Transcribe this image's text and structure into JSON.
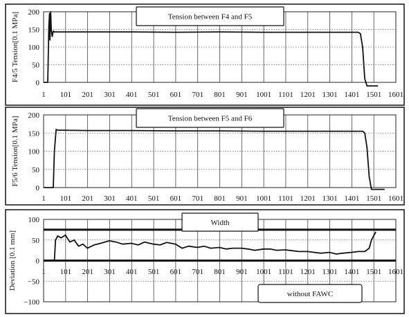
{
  "chart_data": [
    {
      "type": "line",
      "title": "Tension between F4 and F5",
      "ylabel": "F4/5 Tension[0.1 MPa]",
      "xlim": [
        1,
        1601
      ],
      "ylim": [
        0,
        200
      ],
      "x_ticks": [
        "1",
        "101",
        "201",
        "301",
        "401",
        "501",
        "601",
        "701",
        "801",
        "901",
        "1001",
        "1101",
        "1201",
        "1301",
        "1401",
        "1501",
        "1601"
      ],
      "y_ticks": [
        "0",
        "50",
        "100",
        "150",
        "200"
      ],
      "grid": true,
      "series": [
        {
          "x": [
            1,
            20,
            25,
            28,
            30,
            33,
            36,
            40,
            45,
            50,
            200,
            400,
            600,
            800,
            1000,
            1200,
            1350,
            1430,
            1440,
            1450,
            1460,
            1470,
            1500,
            1520
          ],
          "values": [
            0,
            0,
            160,
            195,
            120,
            200,
            150,
            130,
            145,
            143,
            143,
            143,
            142,
            143,
            142,
            142,
            142,
            142,
            138,
            100,
            10,
            -10,
            -10,
            -10
          ]
        }
      ]
    },
    {
      "type": "line",
      "title": "Tension between F5 and  F6",
      "ylabel": "F5/6 Tension[0.1 MPa]",
      "xlim": [
        1,
        1601
      ],
      "ylim": [
        0,
        200
      ],
      "x_ticks": [
        "1",
        "101",
        "201",
        "301",
        "401",
        "501",
        "601",
        "701",
        "801",
        "901",
        "1001",
        "1101",
        "1201",
        "1301",
        "1401",
        "1501",
        "1601"
      ],
      "y_ticks": [
        "0",
        "50",
        "100",
        "150",
        "200"
      ],
      "grid": true,
      "series": [
        {
          "x": [
            1,
            45,
            50,
            58,
            65,
            80,
            200,
            400,
            600,
            800,
            1000,
            1200,
            1400,
            1450,
            1460,
            1470,
            1480,
            1490,
            1500,
            1520,
            1550
          ],
          "values": [
            0,
            0,
            100,
            160,
            158,
            158,
            157,
            157,
            156,
            156,
            155,
            155,
            155,
            155,
            150,
            110,
            30,
            -5,
            -5,
            -5,
            -5
          ]
        }
      ]
    },
    {
      "type": "line",
      "title": "Width",
      "ylabel": "Deviation [0.1 mm]",
      "xlim": [
        1,
        1601
      ],
      "ylim": [
        -100,
        100
      ],
      "x_ticks": [
        "1",
        "101",
        "201",
        "301",
        "401",
        "501",
        "601",
        "701",
        "801",
        "901",
        "1001",
        "1101",
        "1201",
        "1301",
        "1401",
        "1501",
        "1601"
      ],
      "y_ticks": [
        "100",
        "50",
        "0",
        "−50",
        "−100"
      ],
      "grid": true,
      "annotation": "without FAWC",
      "reference_lines": [
        75,
        0
      ],
      "series": [
        {
          "x": [
            1,
            50,
            55,
            65,
            80,
            100,
            120,
            140,
            160,
            180,
            200,
            230,
            260,
            300,
            330,
            360,
            400,
            430,
            460,
            500,
            530,
            560,
            600,
            630,
            660,
            700,
            730,
            760,
            800,
            830,
            860,
            900,
            930,
            960,
            1000,
            1030,
            1060,
            1100,
            1130,
            1160,
            1200,
            1230,
            1260,
            1300,
            1330,
            1360,
            1400,
            1430,
            1460,
            1480,
            1490,
            1500,
            1510
          ],
          "values": [
            0,
            0,
            50,
            60,
            55,
            62,
            45,
            50,
            35,
            40,
            30,
            38,
            42,
            48,
            45,
            40,
            42,
            38,
            45,
            40,
            38,
            44,
            40,
            30,
            35,
            32,
            35,
            30,
            32,
            28,
            30,
            30,
            28,
            25,
            28,
            28,
            25,
            26,
            24,
            22,
            22,
            20,
            18,
            20,
            16,
            18,
            20,
            22,
            22,
            30,
            50,
            60,
            70
          ]
        }
      ]
    }
  ]
}
